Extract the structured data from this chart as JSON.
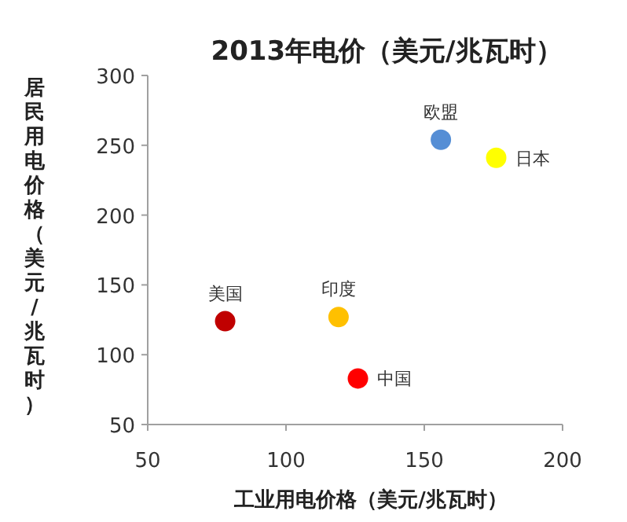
{
  "chart_data": {
    "type": "scatter",
    "title": "2013年电价（美元/兆瓦时）",
    "xlabel": "工业用电价格（美元/兆瓦时）",
    "ylabel": "居民用电价格（美元/兆瓦时）",
    "xlim": [
      50,
      200
    ],
    "xticks": [
      50,
      100,
      150,
      200
    ],
    "ylim": [
      50,
      300
    ],
    "yticks": [
      50,
      100,
      150,
      200,
      250,
      300
    ],
    "grid": false,
    "marker": "circle",
    "series": [
      {
        "name": "美国",
        "color": "#c00000",
        "x": [
          78
        ],
        "values": [
          124
        ]
      },
      {
        "name": "印度",
        "color": "#ffc000",
        "x": [
          119
        ],
        "values": [
          127
        ]
      },
      {
        "name": "中国",
        "color": "#ff0000",
        "x": [
          126
        ],
        "values": [
          83
        ]
      },
      {
        "name": "欧盟",
        "color": "#558ed5",
        "x": [
          156
        ],
        "values": [
          254
        ]
      },
      {
        "name": "日本",
        "color": "#ffff00",
        "x": [
          176
        ],
        "values": [
          241
        ]
      }
    ]
  }
}
